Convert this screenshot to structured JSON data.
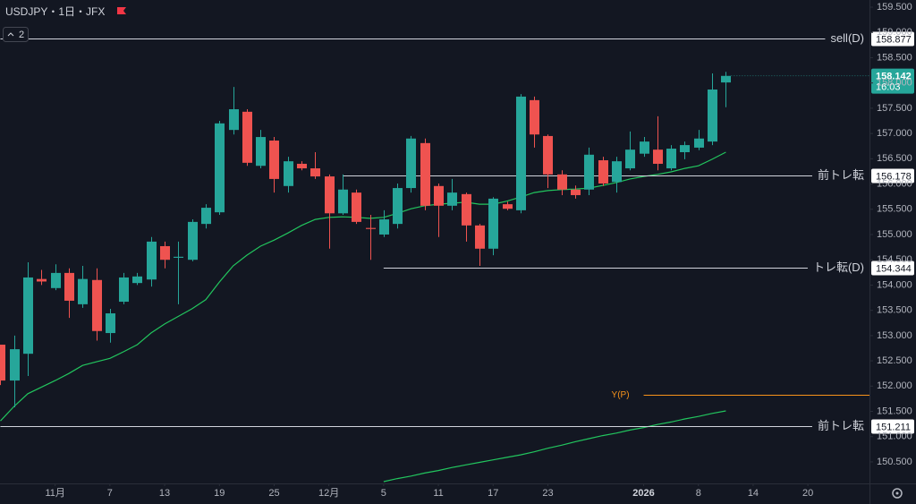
{
  "chart_data": {
    "type": "candlestick",
    "title": "USDJPY・1日・JFX",
    "indicator_count": "2",
    "up_color": "#26a69a",
    "down_color": "#ef5350",
    "open": [
      152.82,
      152.11,
      152.64,
      154.12,
      153.94,
      154.24,
      153.62,
      154.1,
      153.05,
      153.67,
      154.04,
      154.11,
      154.77,
      154.54,
      154.5,
      155.21,
      155.44,
      157.07,
      157.43,
      156.36,
      156.86,
      155.96,
      156.4,
      156.31,
      156.15,
      155.42,
      155.83,
      155.13,
      155.0,
      155.21,
      155.92,
      156.81,
      155.96,
      155.57,
      155.8,
      155.18,
      154.72,
      155.6,
      155.48,
      157.66,
      156.95,
      156.19,
      155.89,
      155.89,
      156.47,
      156.04,
      156.31,
      156.6,
      156.68,
      156.31,
      156.63,
      156.72,
      156.84,
      158.01
    ],
    "high": [
      152.82,
      153.0,
      154.45,
      154.3,
      154.41,
      154.33,
      154.38,
      154.33,
      153.53,
      154.24,
      154.24,
      154.95,
      154.86,
      154.86,
      155.3,
      155.6,
      157.25,
      157.92,
      157.48,
      157.07,
      156.93,
      156.54,
      156.45,
      156.63,
      156.19,
      156.19,
      155.89,
      155.39,
      155.48,
      156.01,
      156.95,
      156.9,
      156.01,
      156.1,
      155.83,
      155.21,
      155.74,
      155.65,
      157.78,
      157.73,
      156.98,
      156.27,
      155.97,
      156.72,
      156.54,
      156.54,
      157.04,
      156.93,
      157.34,
      156.77,
      156.84,
      157.07,
      158.19,
      158.22
    ],
    "low": [
      152.02,
      151.58,
      152.2,
      154.0,
      153.9,
      153.35,
      153.55,
      152.9,
      152.86,
      153.62,
      154.0,
      153.97,
      154.33,
      153.62,
      154.47,
      155.12,
      155.39,
      156.98,
      156.36,
      156.31,
      155.83,
      155.83,
      156.27,
      156.1,
      154.72,
      155.39,
      155.21,
      154.5,
      154.95,
      155.12,
      155.83,
      155.48,
      154.95,
      155.48,
      154.86,
      154.38,
      154.59,
      155.48,
      155.42,
      156.72,
      155.92,
      155.78,
      155.71,
      155.78,
      155.96,
      155.83,
      156.27,
      156.54,
      156.27,
      156.27,
      156.49,
      156.67,
      156.77,
      157.52
    ],
    "close": [
      152.11,
      152.73,
      154.15,
      154.07,
      154.24,
      153.69,
      154.12,
      153.09,
      153.44,
      154.15,
      154.17,
      154.86,
      154.5,
      154.56,
      155.25,
      155.53,
      157.2,
      157.48,
      156.42,
      156.93,
      156.1,
      156.45,
      156.31,
      156.15,
      155.42,
      155.89,
      155.25,
      155.11,
      155.3,
      155.92,
      156.9,
      155.57,
      155.57,
      155.83,
      155.18,
      154.72,
      155.71,
      155.51,
      157.73,
      156.98,
      156.19,
      155.89,
      155.78,
      156.58,
      156.01,
      156.45,
      156.68,
      156.84,
      156.4,
      156.7,
      156.77,
      156.9,
      157.87,
      158.14
    ],
    "lines": [
      {
        "color": "#22c55e",
        "values": [
          151.31,
          151.6,
          151.85,
          151.98,
          152.11,
          152.25,
          152.41,
          152.48,
          152.55,
          152.68,
          152.82,
          153.05,
          153.23,
          153.38,
          153.53,
          153.71,
          154.06,
          154.38,
          154.59,
          154.77,
          154.89,
          155.03,
          155.18,
          155.3,
          155.34,
          155.35,
          155.34,
          155.32,
          155.34,
          155.42,
          155.51,
          155.57,
          155.6,
          155.62,
          155.64,
          155.6,
          155.6,
          155.66,
          155.74,
          155.83,
          155.87,
          155.89,
          155.9,
          155.92,
          155.97,
          156.03,
          156.1,
          156.15,
          156.19,
          156.24,
          156.31,
          156.36,
          156.49,
          156.63
        ]
      },
      {
        "color": "#22c55e",
        "values": [
          null,
          null,
          null,
          null,
          null,
          null,
          null,
          null,
          null,
          null,
          null,
          null,
          null,
          null,
          null,
          null,
          null,
          null,
          null,
          null,
          null,
          null,
          null,
          null,
          null,
          null,
          null,
          null,
          150.11,
          150.17,
          150.22,
          150.28,
          150.33,
          150.39,
          150.44,
          150.49,
          150.54,
          150.59,
          150.64,
          150.7,
          150.77,
          150.83,
          150.9,
          150.96,
          151.02,
          151.07,
          151.13,
          151.18,
          151.24,
          151.29,
          151.35,
          151.4,
          151.46,
          151.51
        ]
      }
    ],
    "levels": [
      {
        "label": "sell(D)",
        "value": 158.877,
        "x_start": 0,
        "color": "#d1d4dc",
        "show_price": true
      },
      {
        "label": "前トレ転",
        "value": 156.178,
        "x_start": 25,
        "color": "#d1d4dc",
        "show_price": true
      },
      {
        "label": "トレ転(D)",
        "value": 154.344,
        "x_start": 28,
        "color": "#d1d4dc",
        "show_price": true
      },
      {
        "label": "前トレ転",
        "value": 151.211,
        "x_start": 0,
        "color": "#d1d4dc",
        "show_price": true
      },
      {
        "label": "Y(P)",
        "value": 151.83,
        "x_start": 47,
        "color": "#f7931a",
        "show_price": false
      }
    ],
    "last_price": {
      "value": 158.142,
      "countdown": "16:03",
      "color": "#26a69a"
    },
    "xlim": [
      -0.03,
      63.5
    ],
    "xticks": [
      {
        "value": 4,
        "label": "11月"
      },
      {
        "value": 8,
        "label": "7"
      },
      {
        "value": 12,
        "label": "13"
      },
      {
        "value": 16,
        "label": "19"
      },
      {
        "value": 20,
        "label": "25"
      },
      {
        "value": 24,
        "label": "12月"
      },
      {
        "value": 28,
        "label": "5"
      },
      {
        "value": 32,
        "label": "11"
      },
      {
        "value": 36,
        "label": "17"
      },
      {
        "value": 40,
        "label": "23"
      },
      {
        "value": 47,
        "label": "2026"
      },
      {
        "value": 51,
        "label": "8"
      },
      {
        "value": 55,
        "label": "14"
      },
      {
        "value": 59,
        "label": "20"
      }
    ],
    "ylim": [
      150.074,
      159.642
    ],
    "yticks": [
      {
        "value": 150.5,
        "label": "150.500"
      },
      {
        "value": 151,
        "label": "151.000"
      },
      {
        "value": 151.5,
        "label": "151.500"
      },
      {
        "value": 152,
        "label": "152.000"
      },
      {
        "value": 152.5,
        "label": "152.500"
      },
      {
        "value": 153,
        "label": "153.000"
      },
      {
        "value": 153.5,
        "label": "153.500"
      },
      {
        "value": 154,
        "label": "154.000"
      },
      {
        "value": 154.5,
        "label": "154.500"
      },
      {
        "value": 155,
        "label": "155.000"
      },
      {
        "value": 155.5,
        "label": "155.500"
      },
      {
        "value": 156,
        "label": "156.000"
      },
      {
        "value": 156.5,
        "label": "156.500"
      },
      {
        "value": 157,
        "label": "157.000"
      },
      {
        "value": 157.5,
        "label": "157.500"
      },
      {
        "value": 158,
        "label": "158.000"
      },
      {
        "value": 158.5,
        "label": "158.500"
      },
      {
        "value": 159,
        "label": "159.000"
      },
      {
        "value": 159.5,
        "label": "159.500"
      }
    ],
    "grid": false
  }
}
